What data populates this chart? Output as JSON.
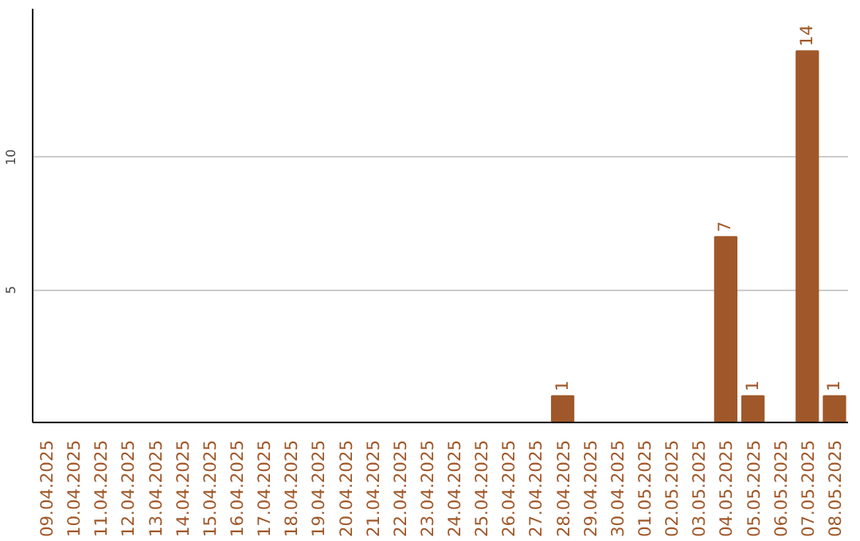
{
  "chart_data": {
    "type": "bar",
    "categories": [
      "09.04.2025",
      "10.04.2025",
      "11.04.2025",
      "12.04.2025",
      "13.04.2025",
      "14.04.2025",
      "15.04.2025",
      "16.04.2025",
      "17.04.2025",
      "18.04.2025",
      "19.04.2025",
      "20.04.2025",
      "21.04.2025",
      "22.04.2025",
      "23.04.2025",
      "24.04.2025",
      "25.04.2025",
      "26.04.2025",
      "27.04.2025",
      "28.04.2025",
      "29.04.2025",
      "30.04.2025",
      "01.05.2025",
      "02.05.2025",
      "03.05.2025",
      "04.05.2025",
      "05.05.2025",
      "06.05.2025",
      "07.05.2025",
      "08.05.2025"
    ],
    "values": [
      0,
      0,
      0,
      0,
      0,
      0,
      0,
      0,
      0,
      0,
      0,
      0,
      0,
      0,
      0,
      0,
      0,
      0,
      0,
      1,
      0,
      0,
      0,
      0,
      0,
      7,
      1,
      0,
      14,
      1
    ],
    "value_labels": [
      null,
      null,
      null,
      null,
      null,
      null,
      null,
      null,
      null,
      null,
      null,
      null,
      null,
      null,
      null,
      null,
      null,
      null,
      null,
      "1",
      null,
      null,
      null,
      null,
      null,
      "7",
      "1",
      null,
      "14",
      "1"
    ],
    "color": "#a0582a",
    "ylim": [
      0,
      15.6
    ],
    "yticks": [
      5,
      10
    ],
    "grid": "y"
  }
}
